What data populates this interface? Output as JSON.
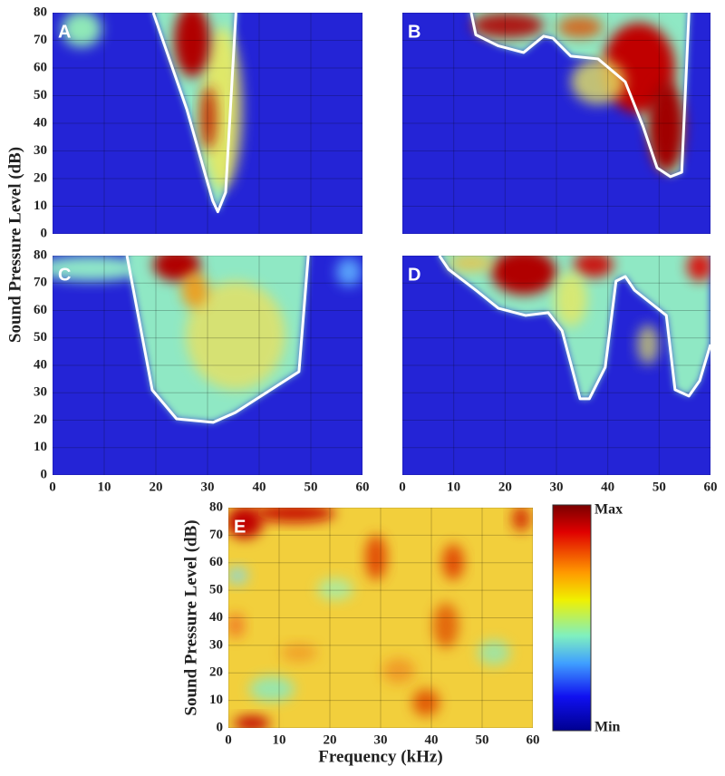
{
  "chart_data": [
    {
      "type": "contour",
      "label": "A",
      "xlim": [
        0,
        60
      ],
      "ylim": [
        0,
        80
      ],
      "xticks": [
        0,
        10,
        20,
        30,
        40,
        50,
        60
      ],
      "yticks": [
        0,
        10,
        20,
        30,
        40,
        50,
        60,
        70,
        80
      ],
      "show_xtick_labels": false,
      "show_ytick_labels": true,
      "x": [
        19.5,
        26,
        31,
        32,
        33.5,
        35.5
      ],
      "y": [
        80,
        45,
        12,
        8,
        15,
        80
      ],
      "line_color": "#ffffff"
    },
    {
      "type": "contour",
      "label": "B",
      "xlim": [
        0,
        60
      ],
      "ylim": [
        0,
        80
      ],
      "xticks": [
        0,
        10,
        20,
        30,
        40,
        50,
        60
      ],
      "yticks": [
        0,
        10,
        20,
        30,
        40,
        50,
        60,
        70,
        80
      ],
      "show_xtick_labels": false,
      "show_ytick_labels": false,
      "x": [
        13.4,
        14.3,
        18.7,
        23.6,
        27.5,
        29.3,
        32.8,
        38.1,
        43.4,
        46.9,
        49.6,
        52.2,
        54.4,
        55.8
      ],
      "y": [
        80,
        72,
        68,
        65.6,
        71.5,
        70.8,
        64.3,
        63.3,
        55,
        38.7,
        23.9,
        20.7,
        22.3,
        80
      ],
      "line_color": "#ffffff"
    },
    {
      "type": "contour",
      "label": "C",
      "ylabel": "Sound Pressure Level (dB)",
      "xlim": [
        0,
        60
      ],
      "ylim": [
        0,
        80
      ],
      "xticks": [
        0,
        10,
        20,
        30,
        40,
        50,
        60
      ],
      "yticks": [
        0,
        10,
        20,
        30,
        40,
        50,
        60,
        70,
        80
      ],
      "show_xtick_labels": true,
      "show_ytick_labels": true,
      "x": [
        14.4,
        19.3,
        24,
        31.1,
        35.4,
        47.7,
        49.5
      ],
      "y": [
        80,
        31,
        20.5,
        19.2,
        22.8,
        37.7,
        80
      ],
      "line_color": "#ffffff"
    },
    {
      "type": "contour",
      "label": "D",
      "xlim": [
        0,
        60
      ],
      "ylim": [
        0,
        80
      ],
      "xticks": [
        0,
        10,
        20,
        30,
        40,
        50,
        60
      ],
      "yticks": [
        0,
        10,
        20,
        30,
        40,
        50,
        60,
        70,
        80
      ],
      "show_xtick_labels": true,
      "show_ytick_labels": false,
      "x": [
        7.2,
        9,
        14.3,
        18.7,
        24,
        28.4,
        31.1,
        34.6,
        36.4,
        39.5,
        41.6,
        43.4,
        45.2,
        51.4,
        53.1,
        55.8,
        57.9,
        60
      ],
      "y": [
        80,
        75,
        67.4,
        60.8,
        58.2,
        59.2,
        52.6,
        27.8,
        27.8,
        39.3,
        70.7,
        72.4,
        67.4,
        58.2,
        31.1,
        28.8,
        34.4,
        47.6
      ],
      "line_color": "#ffffff"
    },
    {
      "type": "heatmap",
      "label": "E",
      "ylabel": "Sound Pressure Level (dB)",
      "xlabel": "Frequency (kHz)",
      "xlim": [
        0,
        60
      ],
      "ylim": [
        0,
        80
      ],
      "xticks": [
        0,
        10,
        20,
        30,
        40,
        50,
        60
      ],
      "yticks": [
        0,
        10,
        20,
        30,
        40,
        50,
        60,
        70,
        80
      ],
      "show_xtick_labels": true,
      "show_ytick_labels": true,
      "colorbar": {
        "max": "Max",
        "min": "Min"
      }
    }
  ]
}
